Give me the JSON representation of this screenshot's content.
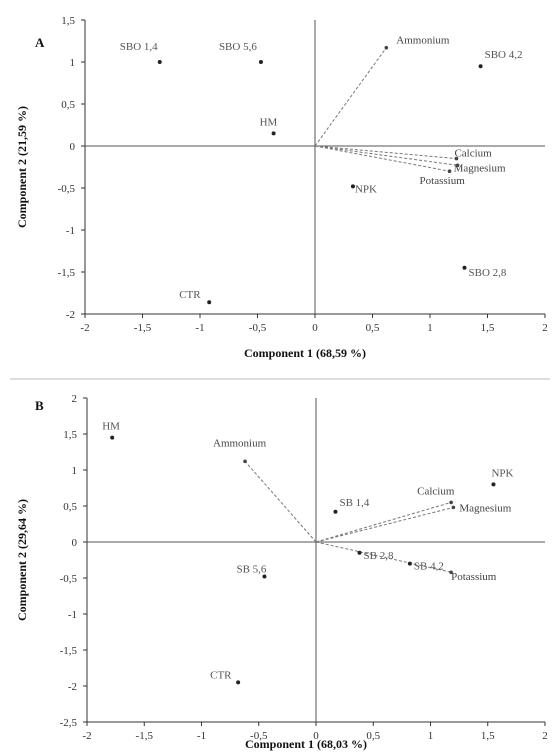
{
  "chart_data": [
    {
      "type": "scatter",
      "panel": "A",
      "xlabel": "Component 1 (68,59 %)",
      "ylabel": "Component 2 (21,59 %)",
      "xlim": [
        -2,
        2
      ],
      "ylim": [
        -2,
        1.5
      ],
      "xticks": [
        "-2",
        "-1,5",
        "-1",
        "-0,5",
        "0",
        "0,5",
        "1",
        "1,5",
        "2"
      ],
      "yticks": [
        "-2",
        "-1,5",
        "-1",
        "-0,5",
        "0",
        "0,5",
        "1",
        "1,5"
      ],
      "points": [
        {
          "label": "SBO 1,4",
          "x": -1.35,
          "y": 1.0
        },
        {
          "label": "SBO 5,6",
          "x": -0.47,
          "y": 1.0
        },
        {
          "label": "HM",
          "x": -0.36,
          "y": 0.15
        },
        {
          "label": "NPK",
          "x": 0.33,
          "y": -0.48
        },
        {
          "label": "SBO 4,2",
          "x": 1.44,
          "y": 0.95
        },
        {
          "label": "SBO 2,8",
          "x": 1.3,
          "y": -1.45
        },
        {
          "label": "CTR",
          "x": -0.92,
          "y": -1.86
        }
      ],
      "vectors": [
        {
          "label": "Ammonium",
          "x": 0.62,
          "y": 1.17
        },
        {
          "label": "Calcium",
          "x": 1.23,
          "y": -0.15
        },
        {
          "label": "Magnesium",
          "x": 1.24,
          "y": -0.23
        },
        {
          "label": "Potassium",
          "x": 1.17,
          "y": -0.3
        }
      ]
    },
    {
      "type": "scatter",
      "panel": "B",
      "xlabel": "Component 1 (68,03 %)",
      "ylabel": "Component 2 (29,64 %)",
      "xlim": [
        -2,
        2
      ],
      "ylim": [
        -2.5,
        2
      ],
      "xticks": [
        "-2",
        "-1,5",
        "-1",
        "-0,5",
        "0",
        "0,5",
        "1",
        "1,5",
        "2"
      ],
      "yticks": [
        "-2,5",
        "-2",
        "-1,5",
        "-1",
        "-0,5",
        "0",
        "0,5",
        "1",
        "1,5",
        "2"
      ],
      "points": [
        {
          "label": "HM",
          "x": -1.78,
          "y": 1.45
        },
        {
          "label": "SB 1,4",
          "x": 0.17,
          "y": 0.42
        },
        {
          "label": "SB 2,8",
          "x": 0.38,
          "y": -0.15
        },
        {
          "label": "SB 4,2",
          "x": 0.82,
          "y": -0.3
        },
        {
          "label": "SB 5,6",
          "x": -0.45,
          "y": -0.48
        },
        {
          "label": "NPK",
          "x": 1.55,
          "y": 0.8
        },
        {
          "label": "CTR",
          "x": -0.68,
          "y": -1.95
        }
      ],
      "vectors": [
        {
          "label": "Ammonium",
          "x": -0.62,
          "y": 1.12
        },
        {
          "label": "Calcium",
          "x": 1.18,
          "y": 0.55
        },
        {
          "label": "Magnesium",
          "x": 1.2,
          "y": 0.48
        },
        {
          "label": "Potassium",
          "x": 1.18,
          "y": -0.42
        }
      ]
    }
  ]
}
